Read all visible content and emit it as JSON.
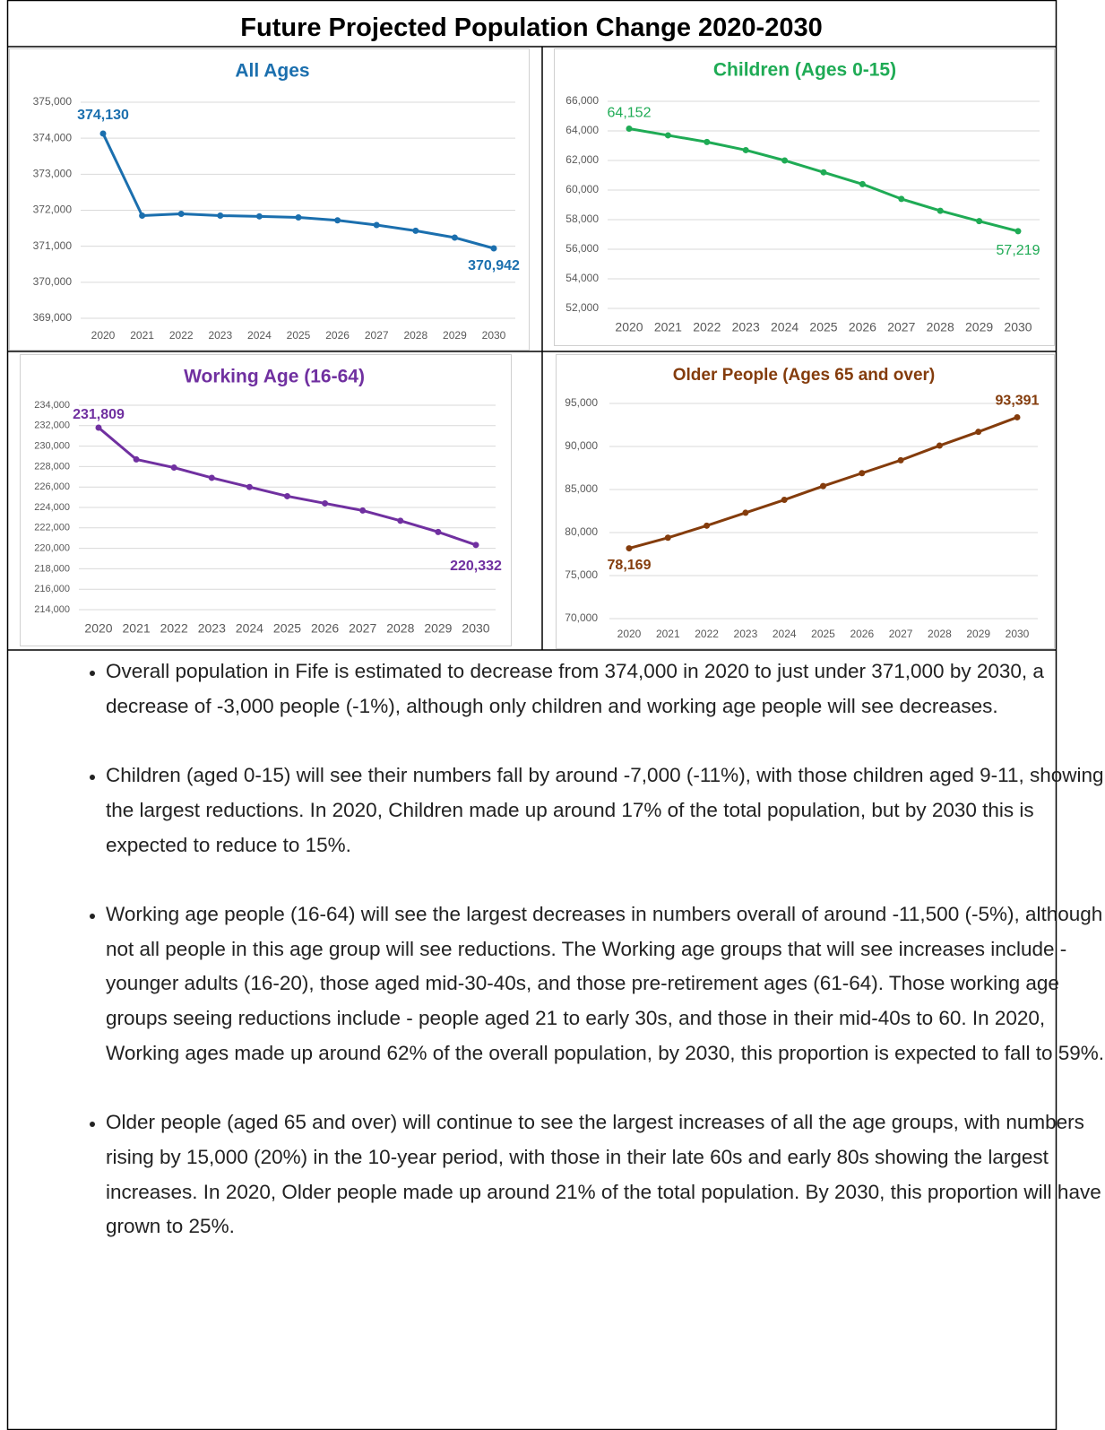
{
  "title": "Future Projected Population Change 2020-2030",
  "chart_data": [
    {
      "type": "line",
      "title": "All Ages",
      "color": "#1b6fae",
      "grid": true,
      "categories": [
        "2020",
        "2021",
        "2022",
        "2023",
        "2024",
        "2025",
        "2026",
        "2027",
        "2028",
        "2029",
        "2030"
      ],
      "values": [
        374130,
        371850,
        371900,
        371850,
        371830,
        371800,
        371720,
        371590,
        371430,
        371240,
        370942
      ],
      "value_labels": [
        "374,130",
        null,
        null,
        null,
        null,
        null,
        null,
        null,
        null,
        null,
        "370,942"
      ],
      "ylim": [
        369000,
        375000
      ],
      "yticks": [
        {
          "value": 369000,
          "label": "369,000"
        },
        {
          "value": 370000,
          "label": "370,000"
        },
        {
          "value": 371000,
          "label": "371,000"
        },
        {
          "value": 372000,
          "label": "372,000"
        },
        {
          "value": 373000,
          "label": "373,000"
        },
        {
          "value": 374000,
          "label": "374,000"
        },
        {
          "value": 375000,
          "label": "375,000"
        }
      ]
    },
    {
      "type": "line",
      "title": "Children (Ages 0-15)",
      "color": "#1fab55",
      "grid": true,
      "categories": [
        "2020",
        "2021",
        "2022",
        "2023",
        "2024",
        "2025",
        "2026",
        "2027",
        "2028",
        "2029",
        "2030"
      ],
      "values": [
        64152,
        63700,
        63250,
        62700,
        62000,
        61200,
        60400,
        59400,
        58600,
        57900,
        57219
      ],
      "value_labels": [
        "64,152",
        null,
        null,
        null,
        null,
        null,
        null,
        null,
        null,
        null,
        "57,219"
      ],
      "ylim": [
        52000,
        66000
      ],
      "yticks": [
        {
          "value": 52000,
          "label": "52,000"
        },
        {
          "value": 54000,
          "label": "54,000"
        },
        {
          "value": 56000,
          "label": "56,000"
        },
        {
          "value": 58000,
          "label": "58,000"
        },
        {
          "value": 60000,
          "label": "60,000"
        },
        {
          "value": 62000,
          "label": "62,000"
        },
        {
          "value": 64000,
          "label": "64,000"
        },
        {
          "value": 66000,
          "label": "66,000"
        }
      ]
    },
    {
      "type": "line",
      "title": "Working Age (16-64)",
      "color": "#7030a0",
      "grid": true,
      "categories": [
        "2020",
        "2021",
        "2022",
        "2023",
        "2024",
        "2025",
        "2026",
        "2027",
        "2028",
        "2029",
        "2030"
      ],
      "values": [
        231809,
        228700,
        227900,
        226900,
        226000,
        225100,
        224400,
        223700,
        222700,
        221600,
        220332
      ],
      "value_labels": [
        "231,809",
        null,
        null,
        null,
        null,
        null,
        null,
        null,
        null,
        null,
        "220,332"
      ],
      "ylim": [
        214000,
        234000
      ],
      "yticks": [
        {
          "value": 214000,
          "label": "214,000"
        },
        {
          "value": 216000,
          "label": "216,000"
        },
        {
          "value": 218000,
          "label": "218,000"
        },
        {
          "value": 220000,
          "label": "220,000"
        },
        {
          "value": 222000,
          "label": "222,000"
        },
        {
          "value": 224000,
          "label": "224,000"
        },
        {
          "value": 226000,
          "label": "226,000"
        },
        {
          "value": 228000,
          "label": "228,000"
        },
        {
          "value": 230000,
          "label": "230,000"
        },
        {
          "value": 232000,
          "label": "232,000"
        },
        {
          "value": 234000,
          "label": "234,000"
        }
      ]
    },
    {
      "type": "line",
      "title": "Older People (Ages 65 and over)",
      "color": "#843c0c",
      "grid": true,
      "categories": [
        "2020",
        "2021",
        "2022",
        "2023",
        "2024",
        "2025",
        "2026",
        "2027",
        "2028",
        "2029",
        "2030"
      ],
      "values": [
        78169,
        79400,
        80800,
        82300,
        83800,
        85400,
        86900,
        88400,
        90100,
        91700,
        93391
      ],
      "value_labels": [
        "78,169",
        null,
        null,
        null,
        null,
        null,
        null,
        null,
        null,
        null,
        "93,391"
      ],
      "ylim": [
        70000,
        95000
      ],
      "yticks": [
        {
          "value": 70000,
          "label": "70,000"
        },
        {
          "value": 75000,
          "label": "75,000"
        },
        {
          "value": 80000,
          "label": "80,000"
        },
        {
          "value": 85000,
          "label": "85,000"
        },
        {
          "value": 90000,
          "label": "90,000"
        },
        {
          "value": 95000,
          "label": "95,000"
        }
      ]
    }
  ],
  "bullets": [
    "Overall population in Fife is estimated to decrease from 374,000 in 2020 to just under 371,000 by 2030, a decrease of -3,000 people (-1%), although only children and working age people will see decreases.",
    "Children (aged 0-15) will see their numbers fall by around -7,000 (-11%), with those children aged 9-11, showing the largest reductions. In 2020, Children made up around 17% of the total population, but by 2030 this is expected to reduce to 15%.",
    "Working age people (16-64) will see the largest decreases in numbers overall of around -11,500 (-5%), although not all people in this age group will see reductions. The Working age groups that will see increases include - younger adults (16-20), those aged mid-30-40s, and those pre-retirement ages (61-64). Those working age groups seeing reductions include - people aged 21 to early 30s, and those in their mid-40s to 60. In 2020, Working ages made up around 62% of the overall population, by 2030, this proportion is expected to fall to 59%.",
    "Older people (aged 65 and over) will continue to see the largest increases of all the age groups, with numbers rising by 15,000 (20%) in the 10-year period, with those in their late 60s and early 80s showing the largest increases. In 2020, Older people made up around 21% of the total population. By 2030, this proportion will have grown to 25%."
  ]
}
